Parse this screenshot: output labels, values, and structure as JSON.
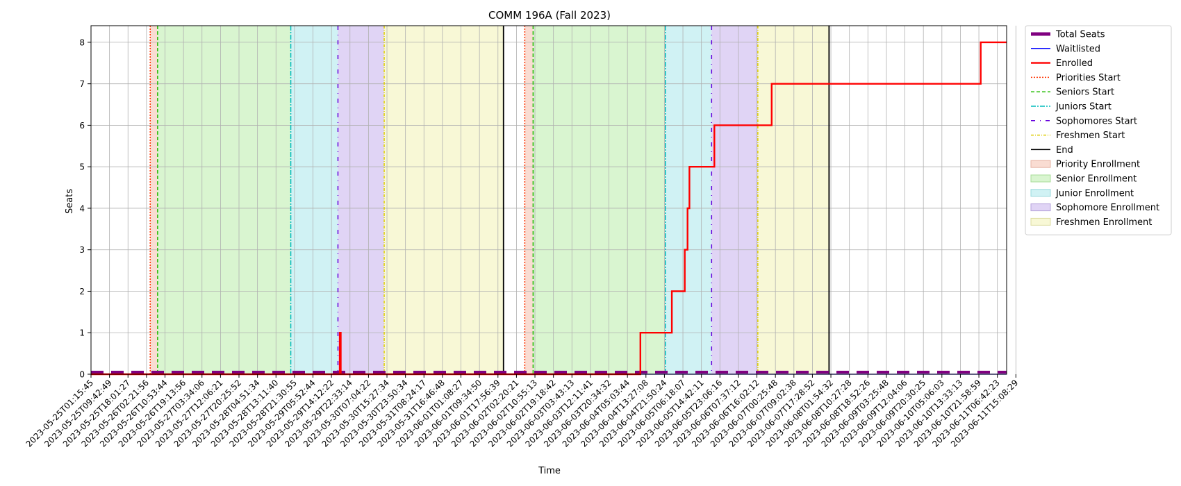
{
  "chart_data": {
    "type": "line",
    "title": "COMM 196A (Fall 2023)",
    "xlabel": "Time",
    "ylabel": "Seats",
    "x_ticks": [
      "2023-05-25T01:15:45",
      "2023-05-25T09:42:49",
      "2023-05-25T18:01:27",
      "2023-05-26T02:21:56",
      "2023-05-26T10:53:44",
      "2023-05-26T19:13:56",
      "2023-05-27T03:34:06",
      "2023-05-27T12:06:21",
      "2023-05-27T20:25:52",
      "2023-05-28T04:51:34",
      "2023-05-28T13:11:40",
      "2023-05-28T21:30:55",
      "2023-05-29T05:52:44",
      "2023-05-29T14:12:22",
      "2023-05-29T22:33:14",
      "2023-05-30T07:04:22",
      "2023-05-30T15:27:34",
      "2023-05-30T23:50:34",
      "2023-05-31T08:24:17",
      "2023-05-31T16:46:48",
      "2023-06-01T01:08:27",
      "2023-06-01T09:34:50",
      "2023-06-01T17:56:39",
      "2023-06-02T02:20:21",
      "2023-06-02T10:55:13",
      "2023-06-02T19:18:42",
      "2023-06-03T03:43:13",
      "2023-06-03T12:11:41",
      "2023-06-03T20:34:32",
      "2023-06-04T05:03:44",
      "2023-06-04T13:27:08",
      "2023-06-04T21:50:24",
      "2023-06-05T06:18:07",
      "2023-06-05T14:42:11",
      "2023-06-05T23:06:16",
      "2023-06-06T07:37:12",
      "2023-06-06T16:02:12",
      "2023-06-07T00:25:48",
      "2023-06-07T09:02:38",
      "2023-06-07T17:28:52",
      "2023-06-08T01:54:32",
      "2023-06-08T10:27:28",
      "2023-06-08T18:52:26",
      "2023-06-09T03:25:48",
      "2023-06-09T12:04:06",
      "2023-06-09T20:30:25",
      "2023-06-10T05:06:03",
      "2023-06-10T13:33:13",
      "2023-06-10T21:58:59",
      "2023-06-11T06:42:23",
      "2023-06-11T15:08:29"
    ],
    "x_range": [
      0,
      49.5
    ],
    "ylim": [
      0,
      8.4
    ],
    "y_ticks": [
      0,
      1,
      2,
      3,
      4,
      5,
      6,
      7,
      8
    ],
    "grid": true,
    "legend_position": "outside right, top",
    "period_1": {
      "priority_enrollment": [
        3.2,
        3.6
      ],
      "senior_enrollment": [
        3.6,
        10.8
      ],
      "junior_enrollment": [
        10.8,
        13.35
      ],
      "sophomore_enrollment": [
        13.35,
        15.85
      ],
      "freshmen_enrollment": [
        15.85,
        22.3
      ],
      "priorities_start": 3.2,
      "seniors_start": 3.6,
      "juniors_start": 10.8,
      "sophomores_start": 13.35,
      "freshmen_start": 15.85,
      "end": 22.3
    },
    "period_2": {
      "priority_enrollment": [
        23.45,
        23.9
      ],
      "senior_enrollment": [
        23.9,
        31.05
      ],
      "junior_enrollment": [
        31.05,
        33.55
      ],
      "sophomore_enrollment": [
        33.55,
        36.05
      ],
      "freshmen_enrollment": [
        36.05,
        39.9
      ],
      "priorities_start": 23.45,
      "seniors_start": 23.9,
      "juniors_start": 31.05,
      "sophomores_start": 33.55,
      "freshmen_start": 36.05,
      "end": 39.9
    },
    "series": [
      {
        "name": "Total Seats",
        "color": "#800080",
        "style": "dashed-thick",
        "points": [
          [
            0,
            0.05
          ],
          [
            49.5,
            0.05
          ]
        ]
      },
      {
        "name": "Waitlisted",
        "color": "#0000ff",
        "style": "solid",
        "points": [
          [
            0,
            0
          ],
          [
            49.5,
            0
          ]
        ]
      },
      {
        "name": "Enrolled",
        "color": "#ff0000",
        "style": "step",
        "points": [
          [
            0,
            0
          ],
          [
            13.45,
            0
          ],
          [
            13.45,
            1
          ],
          [
            13.5,
            1
          ],
          [
            13.5,
            0
          ],
          [
            29.7,
            0
          ],
          [
            29.7,
            1
          ],
          [
            31.4,
            1
          ],
          [
            31.4,
            2
          ],
          [
            32.1,
            2
          ],
          [
            32.1,
            3
          ],
          [
            32.25,
            3
          ],
          [
            32.25,
            4
          ],
          [
            32.35,
            4
          ],
          [
            32.35,
            5
          ],
          [
            33.7,
            5
          ],
          [
            33.7,
            6
          ],
          [
            36.8,
            6
          ],
          [
            36.8,
            7
          ],
          [
            48.1,
            7
          ],
          [
            48.1,
            8
          ],
          [
            49.5,
            8
          ]
        ]
      }
    ],
    "legend": [
      {
        "label": "Total Seats",
        "kind": "thick-line",
        "color": "#800080"
      },
      {
        "label": "Waitlisted",
        "kind": "line",
        "color": "#0000ff",
        "dash": ""
      },
      {
        "label": "Enrolled",
        "kind": "line-bold",
        "color": "#ff0000",
        "dash": ""
      },
      {
        "label": "Priorities Start",
        "kind": "line",
        "color": "#ff3300",
        "dash": "2,2"
      },
      {
        "label": "Seniors Start",
        "kind": "line",
        "color": "#22bb00",
        "dash": "5,3"
      },
      {
        "label": "Juniors Start",
        "kind": "line",
        "color": "#00bbbb",
        "dash": "7,2,2,2"
      },
      {
        "label": "Sophomores Start",
        "kind": "line",
        "color": "#6600dd",
        "dash": "6,7,1,7"
      },
      {
        "label": "Freshmen Start",
        "kind": "line",
        "color": "#ddcc00",
        "dash": "4,2,1,2"
      },
      {
        "label": "End",
        "kind": "line",
        "color": "#000000",
        "dash": ""
      },
      {
        "label": "Priority Enrollment",
        "kind": "patch",
        "color": "#f9dcd2",
        "stroke": "#e6b5a5"
      },
      {
        "label": "Senior Enrollment",
        "kind": "patch",
        "color": "#d9f5d0",
        "stroke": "#a8dc98"
      },
      {
        "label": "Junior Enrollment",
        "kind": "patch",
        "color": "#d0f2f4",
        "stroke": "#98d9dc"
      },
      {
        "label": "Sophomore Enrollment",
        "kind": "patch",
        "color": "#e0d4f5",
        "stroke": "#b6a3dc"
      },
      {
        "label": "Freshmen Enrollment",
        "kind": "patch",
        "color": "#f8f8d6",
        "stroke": "#dcdca0"
      }
    ],
    "colors": {
      "priority_fill": "#f9dcd2",
      "senior_fill": "#d9f5d0",
      "junior_fill": "#d0f2f4",
      "sophomore_fill": "#e0d4f5",
      "freshmen_fill": "#f8f8d6",
      "priorities_line": "#ff3300",
      "seniors_line": "#22bb00",
      "juniors_line": "#00bbbb",
      "sophomores_line": "#6600dd",
      "freshmen_line": "#ddcc00",
      "end_line": "#000000",
      "grid": "#b0b0b0"
    }
  }
}
